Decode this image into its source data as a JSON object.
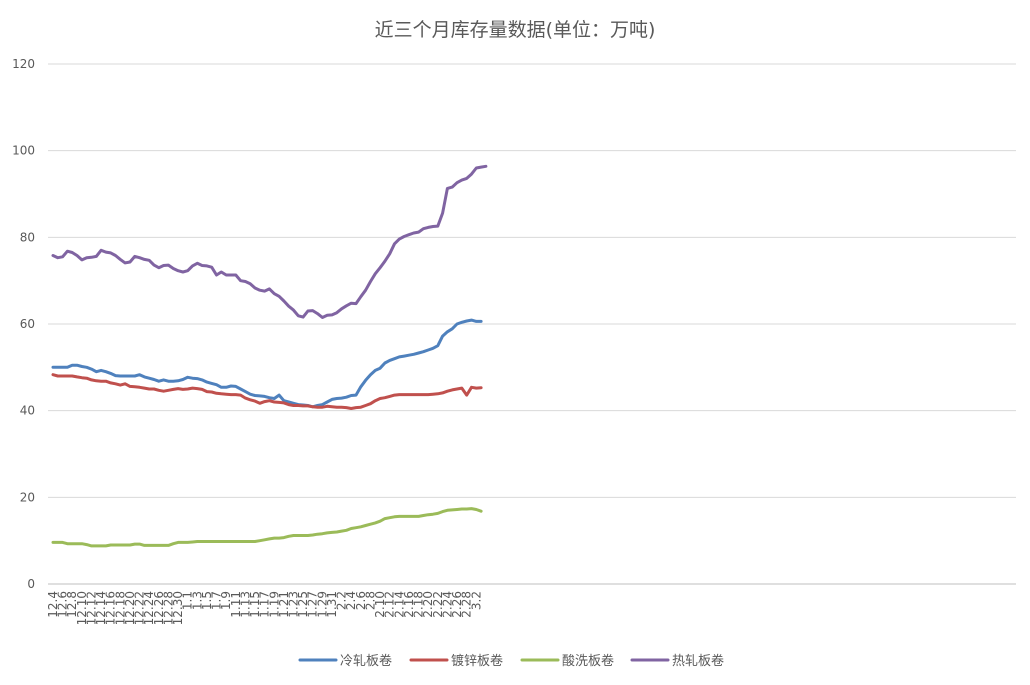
{
  "chart_data": {
    "type": "line",
    "title": "近三个月库存量数据(单位：万吨)",
    "xlabel": "",
    "ylabel": "",
    "ylim": [
      0,
      120
    ],
    "yticks": [
      0,
      20,
      40,
      60,
      80,
      100,
      120
    ],
    "grid": true,
    "legend_position": "bottom",
    "x_tick_labels": [
      "12.4",
      "12.6",
      "12.8",
      "12.10",
      "12.12",
      "12.14",
      "12.16",
      "12.18",
      "12.20",
      "12.22",
      "12.24",
      "12.26",
      "12.28",
      "12.30",
      "1.1",
      "1.3",
      "1.5",
      "1.7",
      "1.9",
      "1.11",
      "1.13",
      "1.15",
      "1.17",
      "1.19",
      "1.21",
      "1.23",
      "1.25",
      "1.27",
      "1.29",
      "1.31",
      "2.2",
      "2.4",
      "2.6",
      "2.8",
      "2.10",
      "2.12",
      "2.14",
      "2.16",
      "2.18",
      "2.20",
      "2.22",
      "2.24",
      "2.26",
      "2.28",
      "3.2"
    ],
    "series": [
      {
        "name": "冷轧板卷",
        "color": "#4F81BD",
        "values": [
          50,
          50,
          50,
          50,
          50.5,
          50.5,
          50.2,
          50,
          49.6,
          49,
          49.3,
          49,
          48.6,
          48.1,
          48,
          48,
          48,
          48,
          48.3,
          47.8,
          47.5,
          47.2,
          46.8,
          47.1,
          46.8,
          46.8,
          46.9,
          47.2,
          47.7,
          47.5,
          47.4,
          47.1,
          46.6,
          46.3,
          46,
          45.4,
          45.4,
          45.7,
          45.6,
          45,
          44.4,
          43.8,
          43.5,
          43.4,
          43.3,
          43,
          42.8,
          43.6,
          42.3,
          42,
          41.7,
          41.4,
          41.3,
          41.2,
          40.9,
          41.2,
          41.4,
          42,
          42.6,
          42.8,
          42.9,
          43.1,
          43.5,
          43.6,
          45.5,
          47,
          48.3,
          49.3,
          49.8,
          51,
          51.6,
          52,
          52.4,
          52.6,
          52.8,
          53,
          53.3,
          53.6,
          54,
          54.4,
          55,
          57.2,
          58.2,
          58.9,
          60,
          60.4,
          60.7,
          60.9,
          60.6,
          60.6
        ]
      },
      {
        "name": "镀锌板卷",
        "color": "#C0504D",
        "values": [
          48.3,
          48,
          48,
          48,
          48,
          47.8,
          47.6,
          47.5,
          47.1,
          46.9,
          46.8,
          46.8,
          46.4,
          46.2,
          45.9,
          46.2,
          45.6,
          45.5,
          45.4,
          45.2,
          45,
          45,
          44.7,
          44.5,
          44.7,
          44.9,
          45.1,
          44.9,
          45,
          45.2,
          45.1,
          44.9,
          44.4,
          44.3,
          44,
          43.9,
          43.8,
          43.7,
          43.7,
          43.6,
          42.9,
          42.5,
          42.2,
          41.7,
          42.1,
          42.3,
          42,
          41.9,
          41.8,
          41.4,
          41.2,
          41.2,
          41.1,
          41.1,
          40.9,
          40.8,
          40.8,
          41,
          40.9,
          40.8,
          40.8,
          40.7,
          40.5,
          40.7,
          40.8,
          41.2,
          41.6,
          42.3,
          42.8,
          43,
          43.3,
          43.6,
          43.7,
          43.7,
          43.7,
          43.7,
          43.7,
          43.7,
          43.7,
          43.8,
          43.9,
          44.1,
          44.5,
          44.8,
          45,
          45.2,
          43.6,
          45.4,
          45.2,
          45.3
        ]
      },
      {
        "name": "酸洗板卷",
        "color": "#9BBB59",
        "values": [
          9.6,
          9.6,
          9.6,
          9.3,
          9.3,
          9.3,
          9.3,
          9.1,
          8.8,
          8.8,
          8.8,
          8.8,
          9,
          9,
          9,
          9,
          9,
          9.2,
          9.2,
          8.9,
          8.9,
          8.9,
          8.9,
          8.9,
          8.9,
          9.3,
          9.6,
          9.6,
          9.6,
          9.7,
          9.8,
          9.8,
          9.8,
          9.8,
          9.8,
          9.8,
          9.8,
          9.8,
          9.8,
          9.8,
          9.8,
          9.8,
          9.8,
          10,
          10.2,
          10.4,
          10.6,
          10.6,
          10.7,
          11,
          11.2,
          11.2,
          11.2,
          11.2,
          11.3,
          11.5,
          11.6,
          11.8,
          11.9,
          12,
          12.2,
          12.4,
          12.8,
          13,
          13.2,
          13.5,
          13.8,
          14.1,
          14.5,
          15.1,
          15.3,
          15.5,
          15.6,
          15.6,
          15.6,
          15.6,
          15.6,
          15.8,
          16,
          16.1,
          16.3,
          16.7,
          17,
          17.1,
          17.2,
          17.3,
          17.3,
          17.4,
          17.2,
          16.8
        ]
      },
      {
        "name": "热轧板卷",
        "color": "#8064A2",
        "values": [
          75.8,
          75.3,
          75.5,
          76.8,
          76.5,
          75.8,
          74.8,
          75.3,
          75.4,
          75.6,
          77,
          76.6,
          76.4,
          75.8,
          74.9,
          74.1,
          74.3,
          75.6,
          75.3,
          74.9,
          74.7,
          73.6,
          73,
          73.5,
          73.6,
          72.8,
          72.3,
          72,
          72.3,
          73.4,
          74,
          73.5,
          73.4,
          73.1,
          71.3,
          72,
          71.3,
          71.3,
          71.3,
          70,
          69.8,
          69.3,
          68.3,
          67.8,
          67.6,
          68.1,
          67,
          66.4,
          65.3,
          64.1,
          63.2,
          61.9,
          61.6,
          63,
          63.1,
          62.4,
          61.5,
          62,
          62.1,
          62.6,
          63.5,
          64.2,
          64.8,
          64.7,
          66.3,
          67.8,
          69.8,
          71.6,
          73,
          74.5,
          76.2,
          78.5,
          79.6,
          80.2,
          80.6,
          81,
          81.2,
          82,
          82.3,
          82.5,
          82.6,
          85.6,
          91.3,
          91.6,
          92.6,
          93.2,
          93.6,
          94.6,
          96,
          96.2,
          96.4
        ]
      }
    ]
  }
}
